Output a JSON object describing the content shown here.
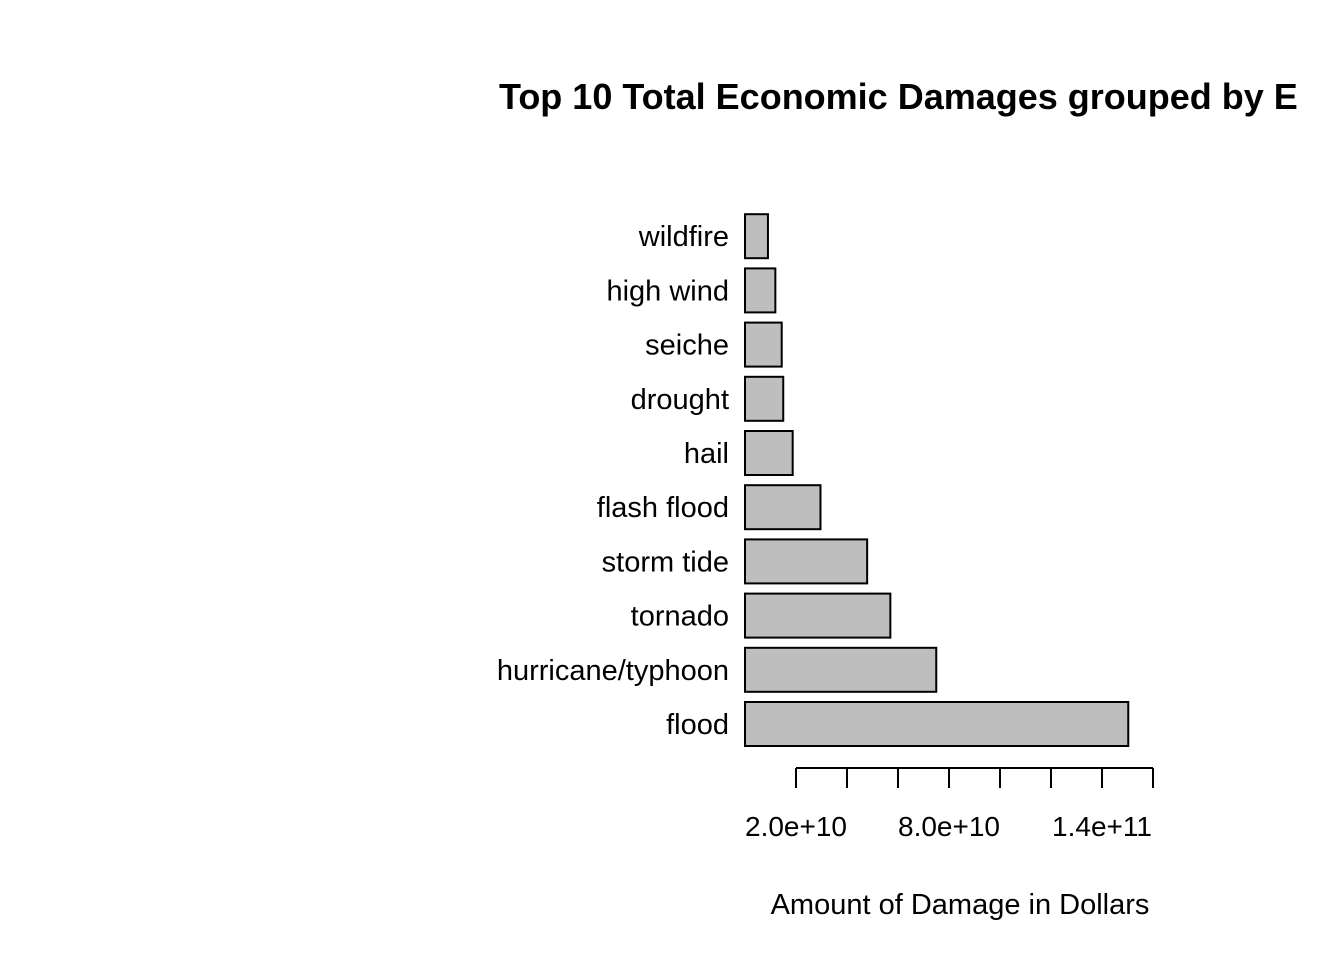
{
  "chart_data": {
    "type": "bar",
    "orientation": "horizontal",
    "title": "Top 10 Total Economic Damages grouped by E",
    "xlabel": "Amount of Damage in Dollars",
    "ylabel": "",
    "categories": [
      "flood",
      "hurricane/typhoon",
      "tornado",
      "storm tide",
      "flash flood",
      "hail",
      "drought",
      "seiche",
      "high wind",
      "wildfire"
    ],
    "values": [
      150300000000,
      75000000000,
      57000000000,
      47900000000,
      29600000000,
      18700000000,
      15000000000,
      14400000000,
      11900000000,
      9000000000
    ],
    "xlim": [
      0,
      160000000000
    ],
    "ticks": [
      20000000000,
      40000000000,
      60000000000,
      80000000000,
      100000000000,
      120000000000,
      140000000000,
      160000000000
    ],
    "tick_labels": [
      {
        "value": 20000000000,
        "label": "2.0e+10"
      },
      {
        "value": 80000000000,
        "label": "8.0e+10"
      },
      {
        "value": 140000000000,
        "label": "1.4e+11"
      }
    ],
    "bar_color": "#bebebe",
    "edge_color": "#000000",
    "grid": false,
    "legend": "none"
  }
}
